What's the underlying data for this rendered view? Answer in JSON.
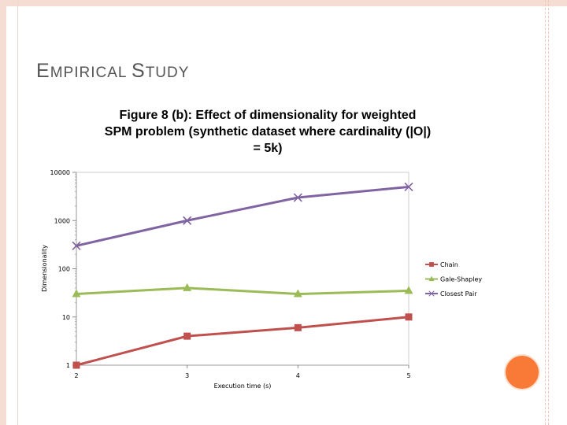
{
  "slide": {
    "title_first": "E",
    "title_rest1": "MPIRICAL ",
    "title_second": "S",
    "title_rest2": "TUDY"
  },
  "chart_data": {
    "type": "line",
    "title_lines": [
      "Figure 8 (b): Effect of dimensionality for weighted",
      "SPM problem (synthetic dataset where cardinality (|O|)",
      "= 5k)"
    ],
    "xlabel": "Execution time (s)",
    "ylabel": "Dimensionality",
    "yscale": "log",
    "ylim": [
      1,
      10000
    ],
    "categories": [
      "2",
      "3",
      "4",
      "5"
    ],
    "y_ticks": [
      "1",
      "10",
      "100",
      "1000",
      "10000"
    ],
    "series": [
      {
        "name": "Chain",
        "marker": "square",
        "color": "#c0504d",
        "values": [
          1,
          4,
          6,
          10
        ]
      },
      {
        "name": "Gale-Shapley",
        "marker": "triangle",
        "color": "#9bbb59",
        "values": [
          30,
          40,
          30,
          35
        ]
      },
      {
        "name": "Closest Pair",
        "marker": "cross",
        "color": "#8064a2",
        "values": [
          300,
          1000,
          3000,
          5000
        ]
      }
    ],
    "legend": "right"
  },
  "decor": {
    "accent": "#f97a37",
    "frame": "#f6ddd3"
  }
}
